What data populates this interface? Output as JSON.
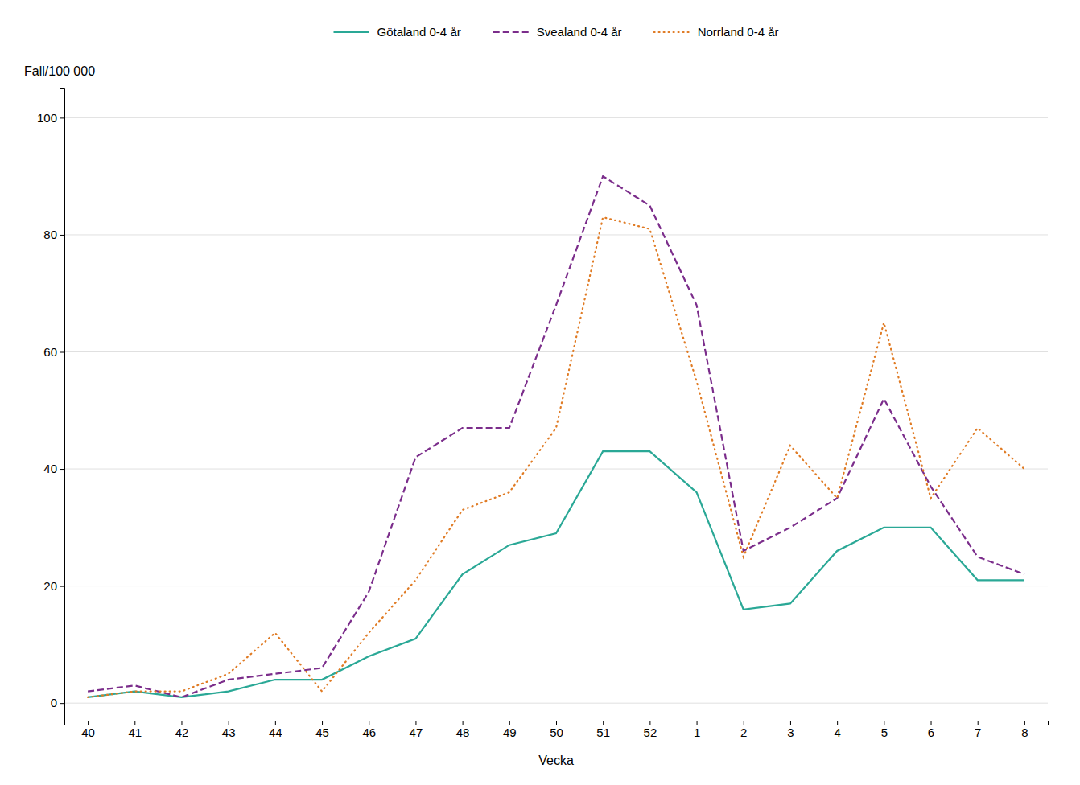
{
  "chart_data": {
    "type": "line",
    "x_label": "Vecka",
    "y_label": "Fall/100 000",
    "categories": [
      "40",
      "41",
      "42",
      "43",
      "44",
      "45",
      "46",
      "47",
      "48",
      "49",
      "50",
      "51",
      "52",
      "1",
      "2",
      "3",
      "4",
      "5",
      "6",
      "7",
      "8"
    ],
    "series": [
      {
        "name": "Götaland 0-4 år",
        "color": "#2aa896",
        "line_style": "solid",
        "values": [
          1,
          2,
          1,
          2,
          4,
          4,
          8,
          11,
          22,
          27,
          29,
          43,
          43,
          36,
          16,
          17,
          26,
          30,
          30,
          21,
          21
        ]
      },
      {
        "name": "Svealand 0-4 år",
        "color": "#7b2d8b",
        "line_style": "dashed",
        "values": [
          2,
          3,
          1,
          4,
          5,
          6,
          19,
          42,
          47,
          47,
          68,
          90,
          85,
          68,
          26,
          30,
          35,
          52,
          37,
          25,
          22
        ]
      },
      {
        "name": "Norrland 0-4 år",
        "color": "#e07b24",
        "line_style": "dotted",
        "values": [
          1,
          2,
          2,
          5,
          12,
          2,
          12,
          21,
          33,
          36,
          47,
          83,
          81,
          55,
          25,
          44,
          35,
          65,
          35,
          47,
          40
        ]
      }
    ],
    "ylim": [
      -3,
      105
    ],
    "yticks": [
      0,
      20,
      40,
      60,
      80,
      100
    ],
    "grid": true,
    "legend": "top"
  }
}
